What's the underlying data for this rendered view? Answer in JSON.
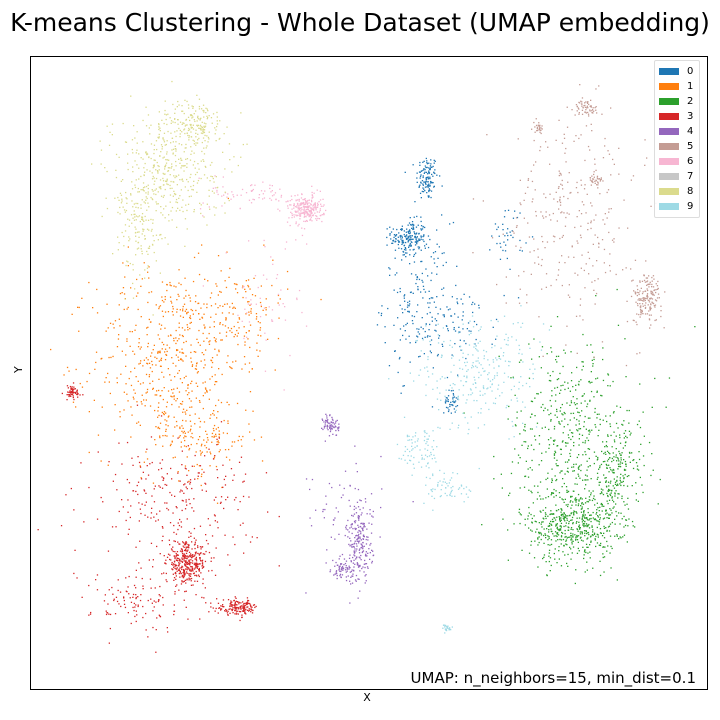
{
  "chart_data": {
    "type": "scatter",
    "title": "K-means Clustering - Whole Dataset (UMAP embedding)",
    "xlabel": "X",
    "ylabel": "Y",
    "xlim": [
      0,
      100
    ],
    "ylim": [
      0,
      100
    ],
    "ticks_shown": false,
    "grid": false,
    "legend_position": "top-right",
    "annotation": "UMAP: n_neighbors=15, min_dist=0.1",
    "series": [
      {
        "name": "0",
        "color": "#1f77b4",
        "regions": [
          {
            "center": [
              58.5,
              81.0
            ],
            "spread": [
              0.8,
              1.8
            ],
            "weight": 120
          },
          {
            "center": [
              55.8,
              71.5
            ],
            "spread": [
              1.3,
              1.4
            ],
            "weight": 170
          },
          {
            "center": [
              57.0,
              62.0
            ],
            "spread": [
              2.5,
              6.0
            ],
            "weight": 180
          },
          {
            "center": [
              63.0,
              58.0
            ],
            "spread": [
              3.0,
              3.0
            ],
            "weight": 80
          },
          {
            "center": [
              62.0,
              45.5
            ],
            "spread": [
              0.5,
              0.9
            ],
            "weight": 40
          },
          {
            "center": [
              70.5,
              72.0
            ],
            "spread": [
              1.2,
              2.5
            ],
            "weight": 40
          }
        ]
      },
      {
        "name": "1",
        "color": "#ff7f0e",
        "regions": [
          {
            "center": [
              20.0,
              52.0
            ],
            "spread": [
              5.5,
              7.5
            ],
            "weight": 500
          },
          {
            "center": [
              30.0,
              60.0
            ],
            "spread": [
              4.0,
              4.0
            ],
            "weight": 160
          },
          {
            "center": [
              25.0,
              40.0
            ],
            "spread": [
              4.0,
              3.0
            ],
            "weight": 140
          }
        ]
      },
      {
        "name": "2",
        "color": "#2ca02c",
        "regions": [
          {
            "center": [
              80.0,
              26.0
            ],
            "spread": [
              3.2,
              3.0
            ],
            "weight": 500
          },
          {
            "center": [
              80.0,
              40.0
            ],
            "spread": [
              5.0,
              8.0
            ],
            "weight": 500
          },
          {
            "center": [
              86.5,
              34.0
            ],
            "spread": [
              1.8,
              4.0
            ],
            "weight": 200
          }
        ]
      },
      {
        "name": "3",
        "color": "#d62728",
        "regions": [
          {
            "center": [
              6.0,
              47.0
            ],
            "spread": [
              0.7,
              0.6
            ],
            "weight": 60
          },
          {
            "center": [
              23.0,
              20.0
            ],
            "spread": [
              1.5,
              1.6
            ],
            "weight": 350
          },
          {
            "center": [
              30.5,
              13.0
            ],
            "spread": [
              1.6,
              0.6
            ],
            "weight": 160
          },
          {
            "center": [
              21.0,
              30.0
            ],
            "spread": [
              6.0,
              5.0
            ],
            "weight": 260
          },
          {
            "center": [
              16.0,
              14.0
            ],
            "spread": [
              3.5,
              2.5
            ],
            "weight": 120
          }
        ]
      },
      {
        "name": "4",
        "color": "#9467bd",
        "regions": [
          {
            "center": [
              44.3,
              41.8
            ],
            "spread": [
              0.6,
              0.9
            ],
            "weight": 70
          },
          {
            "center": [
              48.5,
              23.0
            ],
            "spread": [
              1.0,
              3.2
            ],
            "weight": 220
          },
          {
            "center": [
              46.0,
              19.0
            ],
            "spread": [
              0.8,
              0.7
            ],
            "weight": 60
          },
          {
            "center": [
              45.0,
              28.0
            ],
            "spread": [
              3.5,
              5.0
            ],
            "weight": 50
          }
        ]
      },
      {
        "name": "5",
        "color": "#c49c94",
        "regions": [
          {
            "center": [
              82.0,
              92.0
            ],
            "spread": [
              0.9,
              0.6
            ],
            "weight": 60
          },
          {
            "center": [
              75.0,
              89.0
            ],
            "spread": [
              0.4,
              0.5
            ],
            "weight": 25
          },
          {
            "center": [
              83.5,
              80.5
            ],
            "spread": [
              0.5,
              0.7
            ],
            "weight": 30
          },
          {
            "center": [
              91.0,
              62.0
            ],
            "spread": [
              1.1,
              1.9
            ],
            "weight": 160
          },
          {
            "center": [
              80.0,
              75.0
            ],
            "spread": [
              5.0,
              8.0
            ],
            "weight": 280
          }
        ]
      },
      {
        "name": "6",
        "color": "#f7b6d2",
        "regions": [
          {
            "center": [
              40.5,
              76.0
            ],
            "spread": [
              1.3,
              1.1
            ],
            "weight": 240
          },
          {
            "center": [
              33.5,
              78.5
            ],
            "spread": [
              3.5,
              1.2
            ],
            "weight": 70
          },
          {
            "center": [
              35.0,
              62.0
            ],
            "spread": [
              3.0,
              6.0
            ],
            "weight": 60
          }
        ]
      },
      {
        "name": "7",
        "color": "#c7c7c7",
        "regions": []
      },
      {
        "name": "8",
        "color": "#dbdb8d",
        "regions": [
          {
            "center": [
              24.5,
              89.5
            ],
            "spread": [
              2.0,
              2.0
            ],
            "weight": 140
          },
          {
            "center": [
              20.0,
              83.0
            ],
            "spread": [
              4.0,
              4.5
            ],
            "weight": 420
          },
          {
            "center": [
              16.0,
              73.0
            ],
            "spread": [
              2.0,
              4.0
            ],
            "weight": 140
          }
        ]
      },
      {
        "name": "9",
        "color": "#9edae5",
        "regions": [
          {
            "center": [
              66.0,
              50.0
            ],
            "spread": [
              4.5,
              4.5
            ],
            "weight": 260
          },
          {
            "center": [
              57.5,
              38.0
            ],
            "spread": [
              1.6,
              2.0
            ],
            "weight": 80
          },
          {
            "center": [
              62.0,
              32.0
            ],
            "spread": [
              1.8,
              1.4
            ],
            "weight": 60
          },
          {
            "center": [
              61.4,
              9.8
            ],
            "spread": [
              0.4,
              0.3
            ],
            "weight": 25
          }
        ]
      }
    ]
  }
}
